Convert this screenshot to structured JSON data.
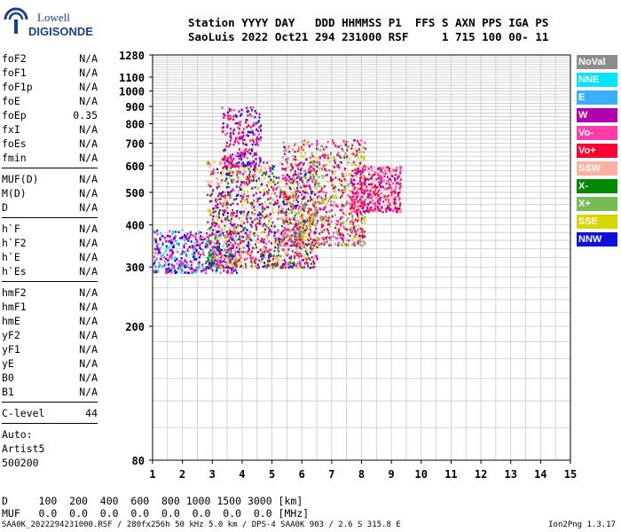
{
  "logo": {
    "line1": "Lowell",
    "line2": "DIGISONDE"
  },
  "header": {
    "line1": "Station YYYY DAY   DDD HHMMSS P1  FFS S AXN PPS IGA PS",
    "line2": "SaoLuis 2022 Oct21 294 231000 RSF     1 715 100 00- 11"
  },
  "params": [
    [
      {
        "name": "foF2",
        "value": "N/A"
      },
      {
        "name": "foF1",
        "value": "N/A"
      },
      {
        "name": "foF1p",
        "value": "N/A"
      },
      {
        "name": "foE",
        "value": "N/A"
      },
      {
        "name": "foEp",
        "value": "0.35"
      },
      {
        "name": "fxI",
        "value": "N/A"
      },
      {
        "name": "foEs",
        "value": "N/A"
      },
      {
        "name": "fmin",
        "value": "N/A"
      }
    ],
    [
      {
        "name": "MUF(D)",
        "value": "N/A"
      },
      {
        "name": "M(D)",
        "value": "N/A"
      },
      {
        "name": "D",
        "value": "N/A"
      }
    ],
    [
      {
        "name": "h`F",
        "value": "N/A"
      },
      {
        "name": "h`F2",
        "value": "N/A"
      },
      {
        "name": "h`E",
        "value": "N/A"
      },
      {
        "name": "h`Es",
        "value": "N/A"
      }
    ],
    [
      {
        "name": "hmF2",
        "value": "N/A"
      },
      {
        "name": "hmF1",
        "value": "N/A"
      },
      {
        "name": "hmE",
        "value": "N/A"
      },
      {
        "name": "yF2",
        "value": "N/A"
      },
      {
        "name": "yF1",
        "value": "N/A"
      },
      {
        "name": "yE",
        "value": "N/A"
      },
      {
        "name": "B0",
        "value": "N/A"
      },
      {
        "name": "B1",
        "value": "N/A"
      }
    ],
    [
      {
        "name": "C-level",
        "value": "44"
      }
    ]
  ],
  "auto": {
    "line1": "Auto:",
    "line2": "Artist5",
    "line3": "500200"
  },
  "bottom": {
    "d_row": "D     100  200  400  600  800 1000 1500 3000 [km]",
    "muf_row": "MUF   0.0  0.0  0.0  0.0  0.0  0.0  0.0  0.0 [MHz]"
  },
  "footer": {
    "left": "SAA0K_2022294231000.RSF / 280fx256h 50 kHz 5.0 km / DPS-4 SAA0K 903 / 2.6 S 315.8 E",
    "right": "Ion2Png 1.3.17"
  },
  "legend": [
    {
      "label": "NoVal",
      "color": "#8c8c8c"
    },
    {
      "label": "NNE",
      "color": "#00e5ff"
    },
    {
      "label": "E",
      "color": "#3caeff"
    },
    {
      "label": "W",
      "color": "#b000b0"
    },
    {
      "label": "Vo-",
      "color": "#ff3caa"
    },
    {
      "label": "Vo+",
      "color": "#ff0033"
    },
    {
      "label": "SSW",
      "color": "#ffb0a0"
    },
    {
      "label": "X-",
      "color": "#008a00"
    },
    {
      "label": "X+",
      "color": "#77bb55"
    },
    {
      "label": "SSE",
      "color": "#d6d600"
    },
    {
      "label": "NNW",
      "color": "#1010dd"
    }
  ],
  "chart_data": {
    "type": "scatter",
    "title": "",
    "xlabel": "",
    "ylabel": "",
    "xlim": [
      1,
      15
    ],
    "ylim": [
      80,
      1280
    ],
    "xticks": [
      1,
      2,
      3,
      4,
      5,
      6,
      7,
      8,
      9,
      10,
      11,
      12,
      13,
      14,
      15
    ],
    "yticks": [
      80,
      200,
      300,
      400,
      500,
      600,
      700,
      800,
      900,
      1000,
      1100,
      1280
    ],
    "y_scale": "log",
    "grid": true,
    "legend_position": "right",
    "clusters": [
      {
        "name": "low-trace",
        "x_range": [
          1.0,
          3.8
        ],
        "y_range": [
          290,
          390
        ],
        "color_mix": [
          "#1010dd",
          "#b000b0",
          "#ff3caa",
          "#00e5ff"
        ],
        "count": 520
      },
      {
        "name": "main-spread",
        "x_range": [
          2.8,
          6.5
        ],
        "y_range": [
          300,
          620
        ],
        "color_mix": [
          "#b000b0",
          "#ff3caa",
          "#ff0033",
          "#d6d600",
          "#008a00",
          "#1010dd",
          "#ffb0a0"
        ],
        "count": 1400
      },
      {
        "name": "upper-spread",
        "x_range": [
          3.3,
          4.6
        ],
        "y_range": [
          600,
          900
        ],
        "color_mix": [
          "#b000b0",
          "#ff3caa",
          "#1010dd",
          "#ff0033"
        ],
        "count": 260
      },
      {
        "name": "mid-spread",
        "x_range": [
          5.3,
          8.1
        ],
        "y_range": [
          350,
          720
        ],
        "color_mix": [
          "#ff0033",
          "#ff3caa",
          "#b000b0",
          "#d6d600",
          "#77bb55"
        ],
        "count": 900
      },
      {
        "name": "right-blob",
        "x_range": [
          7.6,
          9.3
        ],
        "y_range": [
          440,
          600
        ],
        "color_mix": [
          "#ff0033",
          "#ff3caa",
          "#ffb0a0",
          "#b000b0"
        ],
        "count": 480
      }
    ]
  }
}
